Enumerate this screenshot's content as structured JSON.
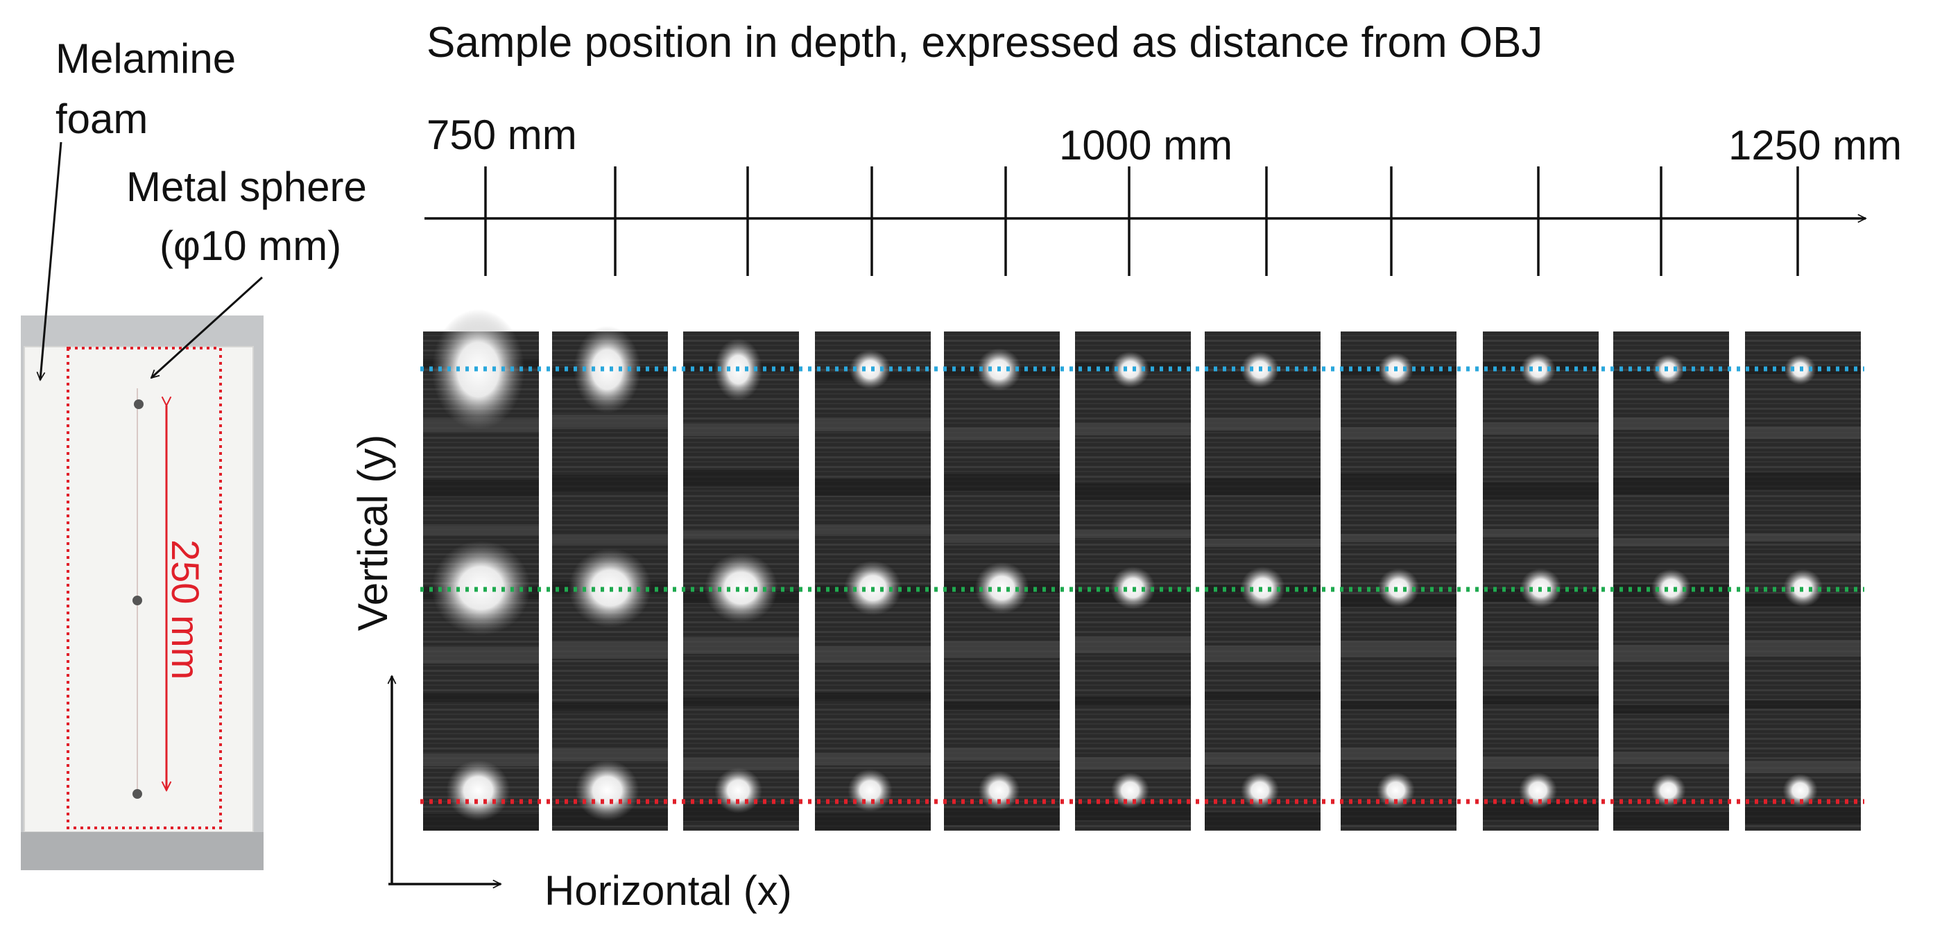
{
  "title": "Sample position in depth, expressed as distance from OBJ",
  "depth_axis": {
    "tick_labels": [
      "750 mm",
      "1000 mm",
      "1250 mm"
    ],
    "range_mm": [
      750,
      1250
    ],
    "tick_count": 11
  },
  "photo": {
    "foam_label_line1": "Melamine",
    "foam_label_line2": "foam",
    "sphere_label_line1": "Metal sphere",
    "sphere_label_line2": "(φ10 mm)",
    "span_label": "250 mm"
  },
  "image_axes": {
    "vertical_label": "Vertical (y)",
    "horizontal_label": "Horizontal (x)"
  },
  "panels": {
    "count": 11,
    "sphere_rows": [
      "top",
      "middle",
      "bottom"
    ]
  },
  "colors": {
    "top_line": "#2aa7dc",
    "middle_line": "#1faa4f",
    "bottom_line": "#e0202a",
    "annotation": "#e0202a",
    "panel_bg": "#2b2b2b",
    "photo_bg": "#c9cbcd",
    "foam": "#f3f3f1"
  }
}
